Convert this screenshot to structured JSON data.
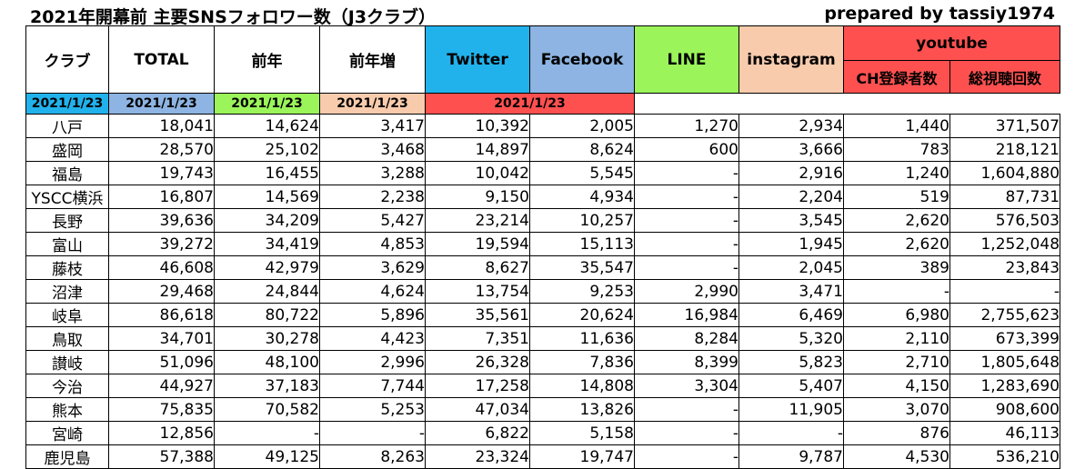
{
  "title": "2021年開幕前 主要SNSフォロワー数（J3クラブ）",
  "credit": "prepared by tassiy1974",
  "headers": {
    "club": "クラブ",
    "total": "TOTAL",
    "prev": "前年",
    "increase": "前年増",
    "twitter": "Twitter",
    "facebook": "Facebook",
    "line": "LINE",
    "instagram": "instagram",
    "youtube": "youtube",
    "yt_subscribers": "CH登録者数",
    "yt_views": "総視聴回数",
    "date": "2021/1/23"
  },
  "colors": {
    "twitter": "#21b2ec",
    "facebook": "#8db4e2",
    "line": "#9bf55a",
    "instagram": "#f8cbad",
    "youtube": "#ff5050"
  },
  "rows": [
    {
      "club": "八戸",
      "total": "18,041",
      "prev": "14,624",
      "inc": "3,417",
      "tw": "10,392",
      "fb": "2,005",
      "line": "1,270",
      "ig": "2,934",
      "ytsub": "1,440",
      "ytviews": "371,507"
    },
    {
      "club": "盛岡",
      "total": "28,570",
      "prev": "25,102",
      "inc": "3,468",
      "tw": "14,897",
      "fb": "8,624",
      "line": "600",
      "ig": "3,666",
      "ytsub": "783",
      "ytviews": "218,121"
    },
    {
      "club": "福島",
      "total": "19,743",
      "prev": "16,455",
      "inc": "3,288",
      "tw": "10,042",
      "fb": "5,545",
      "line": "-",
      "ig": "2,916",
      "ytsub": "1,240",
      "ytviews": "1,604,880"
    },
    {
      "club": "YSCC横浜",
      "total": "16,807",
      "prev": "14,569",
      "inc": "2,238",
      "tw": "9,150",
      "fb": "4,934",
      "line": "-",
      "ig": "2,204",
      "ytsub": "519",
      "ytviews": "87,731"
    },
    {
      "club": "長野",
      "total": "39,636",
      "prev": "34,209",
      "inc": "5,427",
      "tw": "23,214",
      "fb": "10,257",
      "line": "-",
      "ig": "3,545",
      "ytsub": "2,620",
      "ytviews": "576,503"
    },
    {
      "club": "富山",
      "total": "39,272",
      "prev": "34,419",
      "inc": "4,853",
      "tw": "19,594",
      "fb": "15,113",
      "line": "-",
      "ig": "1,945",
      "ytsub": "2,620",
      "ytviews": "1,252,048"
    },
    {
      "club": "藤枝",
      "total": "46,608",
      "prev": "42,979",
      "inc": "3,629",
      "tw": "8,627",
      "fb": "35,547",
      "line": "-",
      "ig": "2,045",
      "ytsub": "389",
      "ytviews": "23,843"
    },
    {
      "club": "沼津",
      "total": "29,468",
      "prev": "24,844",
      "inc": "4,624",
      "tw": "13,754",
      "fb": "9,253",
      "line": "2,990",
      "ig": "3,471",
      "ytsub": "-",
      "ytviews": "-"
    },
    {
      "club": "岐阜",
      "total": "86,618",
      "prev": "80,722",
      "inc": "5,896",
      "tw": "35,561",
      "fb": "20,624",
      "line": "16,984",
      "ig": "6,469",
      "ytsub": "6,980",
      "ytviews": "2,755,623"
    },
    {
      "club": "鳥取",
      "total": "34,701",
      "prev": "30,278",
      "inc": "4,423",
      "tw": "7,351",
      "fb": "11,636",
      "line": "8,284",
      "ig": "5,320",
      "ytsub": "2,110",
      "ytviews": "673,399"
    },
    {
      "club": "讃岐",
      "total": "51,096",
      "prev": "48,100",
      "inc": "2,996",
      "tw": "26,328",
      "fb": "7,836",
      "line": "8,399",
      "ig": "5,823",
      "ytsub": "2,710",
      "ytviews": "1,805,648"
    },
    {
      "club": "今治",
      "total": "44,927",
      "prev": "37,183",
      "inc": "7,744",
      "tw": "17,258",
      "fb": "14,808",
      "line": "3,304",
      "ig": "5,407",
      "ytsub": "4,150",
      "ytviews": "1,283,690"
    },
    {
      "club": "熊本",
      "total": "75,835",
      "prev": "70,582",
      "inc": "5,253",
      "tw": "47,034",
      "fb": "13,826",
      "line": "-",
      "ig": "11,905",
      "ytsub": "3,070",
      "ytviews": "908,600"
    },
    {
      "club": "宮崎",
      "total": "12,856",
      "prev": "-",
      "inc": "-",
      "tw": "6,822",
      "fb": "5,158",
      "line": "-",
      "ig": "-",
      "ytsub": "876",
      "ytviews": "46,113"
    },
    {
      "club": "鹿児島",
      "total": "57,388",
      "prev": "49,125",
      "inc": "8,263",
      "tw": "23,324",
      "fb": "19,747",
      "line": "-",
      "ig": "9,787",
      "ytsub": "4,530",
      "ytviews": "536,210"
    }
  ]
}
